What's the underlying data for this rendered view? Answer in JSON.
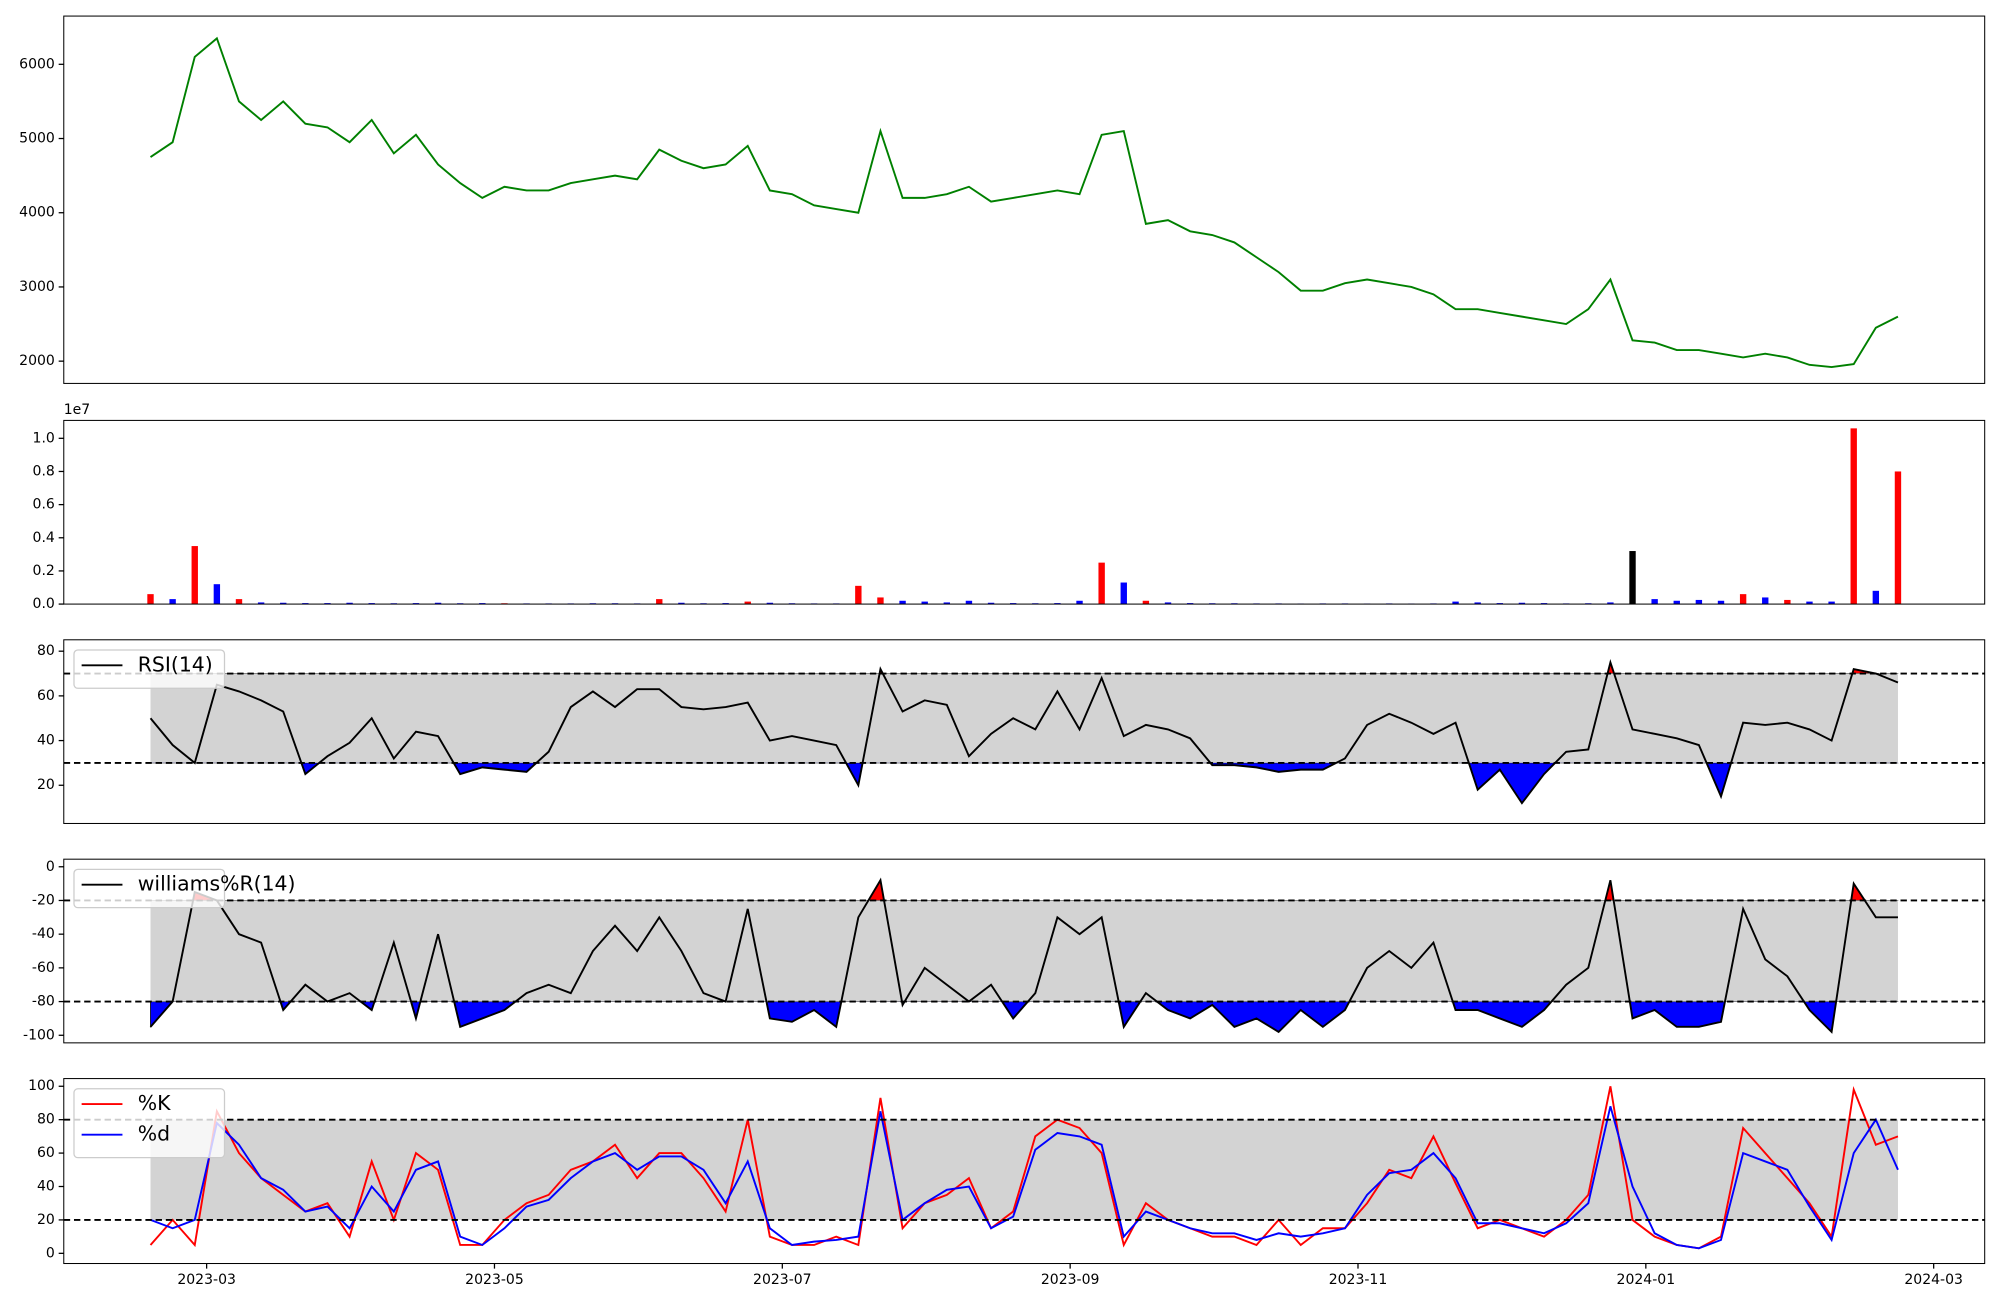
{
  "chart_data": [
    {
      "type": "line",
      "series": [
        {
          "color": "green",
          "values": [
            4750,
            4950,
            6100,
            6350,
            5500,
            5250,
            5500,
            5200,
            5150,
            4950,
            5250,
            4800,
            5050,
            4650,
            4400,
            4200,
            4350,
            4300,
            4300,
            4400,
            4450,
            4500,
            4450,
            4850,
            4700,
            4600,
            4650,
            4900,
            4300,
            4250,
            4100,
            4050,
            4000,
            5100,
            4200,
            4200,
            4250,
            4350,
            4150,
            4200,
            4250,
            4300,
            4250,
            5050,
            5100,
            3850,
            3900,
            3750,
            3700,
            3600,
            3400,
            3200,
            2950,
            2950,
            3050,
            3100,
            3050,
            3000,
            2900,
            2700,
            2700,
            2650,
            2600,
            2550,
            2500,
            2700,
            3100,
            2280,
            2250,
            2150,
            2150,
            2100,
            2050,
            2100,
            2050,
            1950,
            1920,
            1960,
            2450,
            2600
          ]
        }
      ],
      "ylim": [
        1700,
        6650
      ],
      "yticks": [
        2000,
        3000,
        4000,
        5000,
        6000
      ]
    },
    {
      "type": "bar",
      "values": [
        600000,
        300000,
        3500000,
        1200000,
        300000,
        100000,
        80000,
        60000,
        60000,
        80000,
        60000,
        50000,
        60000,
        80000,
        50000,
        60000,
        50000,
        40000,
        40000,
        40000,
        50000,
        50000,
        40000,
        300000,
        80000,
        50000,
        60000,
        150000,
        80000,
        50000,
        40000,
        40000,
        1100000,
        400000,
        200000,
        150000,
        100000,
        200000,
        80000,
        60000,
        50000,
        60000,
        200000,
        2500000,
        1300000,
        200000,
        100000,
        60000,
        50000,
        50000,
        40000,
        40000,
        30000,
        40000,
        40000,
        30000,
        40000,
        30000,
        40000,
        150000,
        100000,
        60000,
        80000,
        60000,
        40000,
        50000,
        100000,
        3200000,
        300000,
        200000,
        250000,
        200000,
        600000,
        400000,
        250000,
        150000,
        150000,
        10600000,
        800000,
        8000000
      ],
      "colors": [
        "red",
        "blue",
        "red",
        "blue",
        "red",
        "blue",
        "blue",
        "blue",
        "blue",
        "blue",
        "blue",
        "blue",
        "blue",
        "blue",
        "blue",
        "blue",
        "red",
        "blue",
        "blue",
        "blue",
        "blue",
        "blue",
        "blue",
        "red",
        "blue",
        "blue",
        "blue",
        "red",
        "blue",
        "blue",
        "blue",
        "blue",
        "red",
        "red",
        "blue",
        "blue",
        "blue",
        "blue",
        "blue",
        "blue",
        "blue",
        "blue",
        "blue",
        "red",
        "blue",
        "red",
        "blue",
        "blue",
        "blue",
        "blue",
        "blue",
        "blue",
        "blue",
        "blue",
        "blue",
        "blue",
        "blue",
        "blue",
        "blue",
        "blue",
        "blue",
        "blue",
        "blue",
        "blue",
        "blue",
        "blue",
        "blue",
        "black",
        "blue",
        "blue",
        "blue",
        "blue",
        "red",
        "blue",
        "red",
        "blue",
        "blue",
        "red",
        "blue",
        "red"
      ],
      "ylim": [
        0,
        11080000
      ],
      "yticks": [
        {
          "value": 0,
          "label": "0.0"
        },
        {
          "value": 2000000,
          "label": "0.2"
        },
        {
          "value": 4000000,
          "label": "0.4"
        },
        {
          "value": 6000000,
          "label": "0.6"
        },
        {
          "value": 8000000,
          "label": "0.8"
        },
        {
          "value": 10000000,
          "label": "1.0"
        }
      ],
      "offset_label": "1e7"
    },
    {
      "type": "line",
      "series": [
        {
          "name": "RSI(14)",
          "color": "black",
          "values": [
            50,
            38,
            30,
            65,
            62,
            58,
            53,
            25,
            33,
            39,
            50,
            32,
            44,
            42,
            25,
            28,
            27,
            26,
            35,
            55,
            62,
            55,
            63,
            63,
            55,
            54,
            55,
            57,
            40,
            42,
            40,
            38,
            20,
            72,
            53,
            58,
            56,
            33,
            43,
            50,
            45,
            62,
            45,
            68,
            42,
            47,
            45,
            41,
            29,
            29,
            28,
            26,
            27,
            27,
            32,
            47,
            52,
            48,
            43,
            48,
            18,
            27,
            12,
            25,
            35,
            36,
            75,
            45,
            43,
            41,
            38,
            15,
            48,
            47,
            48,
            45,
            40,
            72,
            70,
            66
          ]
        }
      ],
      "levels": [
        70,
        30
      ],
      "fill_colors": {
        "band": "lightgray",
        "above": "red",
        "below": "blue"
      },
      "ylim": [
        2.9,
        85.1
      ],
      "yticks": [
        20,
        40,
        60,
        80
      ],
      "legend": "upper left"
    },
    {
      "type": "line",
      "series": [
        {
          "name": "williams%R(14)",
          "color": "black",
          "values": [
            -95,
            -80,
            -15,
            -20,
            -40,
            -45,
            -85,
            -70,
            -80,
            -75,
            -85,
            -45,
            -90,
            -40,
            -95,
            -90,
            -85,
            -75,
            -70,
            -75,
            -50,
            -35,
            -50,
            -30,
            -50,
            -75,
            -80,
            -25,
            -90,
            -92,
            -85,
            -95,
            -30,
            -8,
            -82,
            -60,
            -70,
            -80,
            -70,
            -90,
            -75,
            -30,
            -40,
            -30,
            -95,
            -75,
            -85,
            -90,
            -82,
            -95,
            -90,
            -98,
            -85,
            -95,
            -85,
            -60,
            -50,
            -60,
            -45,
            -85,
            -85,
            -90,
            -95,
            -85,
            -70,
            -60,
            -8,
            -90,
            -85,
            -95,
            -95,
            -92,
            -25,
            -55,
            -65,
            -85,
            -98,
            -10,
            -30,
            -30
          ]
        }
      ],
      "levels": [
        -20,
        -80
      ],
      "fill_colors": {
        "band": "lightgray",
        "above": "red",
        "below": "blue"
      },
      "ylim": [
        -104.5,
        4.5
      ],
      "yticks": [
        -100,
        -80,
        -60,
        -40,
        -20,
        0
      ],
      "legend": "upper left"
    },
    {
      "type": "line",
      "series": [
        {
          "name": "%K",
          "color": "red",
          "values": [
            5,
            20,
            5,
            85,
            60,
            45,
            35,
            25,
            30,
            10,
            55,
            20,
            60,
            50,
            5,
            5,
            20,
            30,
            35,
            50,
            55,
            65,
            45,
            60,
            60,
            45,
            25,
            80,
            10,
            5,
            5,
            10,
            5,
            93,
            15,
            30,
            35,
            45,
            15,
            25,
            70,
            80,
            75,
            60,
            5,
            30,
            20,
            15,
            10,
            10,
            5,
            20,
            5,
            15,
            15,
            30,
            50,
            45,
            70,
            42,
            15,
            20,
            15,
            10,
            20,
            35,
            100,
            20,
            10,
            5,
            3,
            10,
            75,
            60,
            45,
            30,
            10,
            98,
            65,
            70
          ]
        },
        {
          "name": "%d",
          "color": "blue",
          "values": [
            20,
            15,
            20,
            78,
            65,
            45,
            38,
            25,
            28,
            15,
            40,
            25,
            50,
            55,
            10,
            5,
            15,
            28,
            32,
            45,
            55,
            60,
            50,
            58,
            58,
            50,
            30,
            55,
            15,
            5,
            7,
            8,
            10,
            85,
            20,
            30,
            38,
            40,
            15,
            22,
            62,
            72,
            70,
            65,
            10,
            25,
            20,
            15,
            12,
            12,
            8,
            12,
            10,
            12,
            15,
            35,
            48,
            50,
            60,
            45,
            18,
            18,
            15,
            12,
            18,
            30,
            88,
            40,
            12,
            5,
            3,
            8,
            60,
            55,
            50,
            28,
            8,
            60,
            80,
            50
          ]
        }
      ],
      "levels": [
        80,
        20
      ],
      "fill_colors": {
        "band": "lightgray"
      },
      "ylim": [
        -6.1,
        104.6
      ],
      "yticks": [
        0,
        20,
        40,
        60,
        80,
        100
      ],
      "legend": "upper left",
      "xticks": [
        "2023-03",
        "2023-05",
        "2023-07",
        "2023-09",
        "2023-11",
        "2024-01",
        "2024-03"
      ]
    }
  ]
}
